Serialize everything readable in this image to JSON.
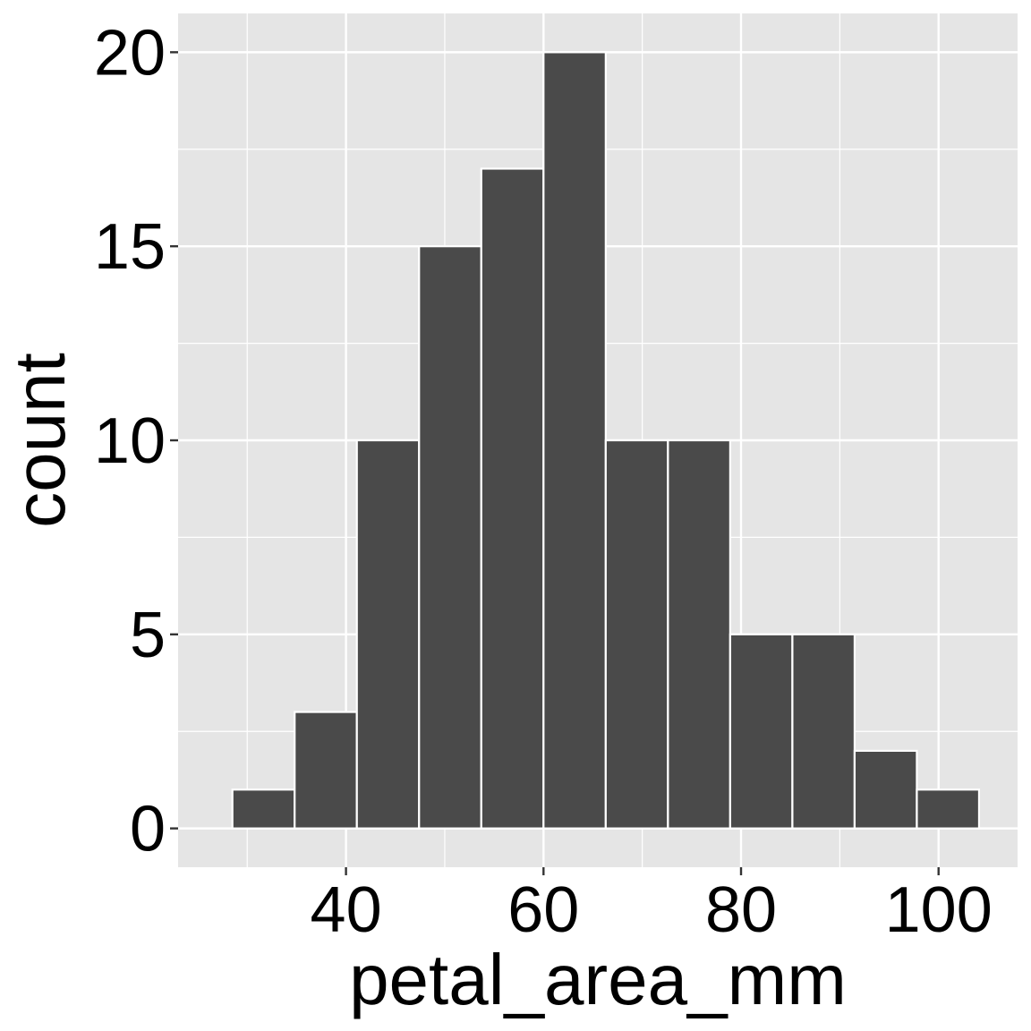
{
  "chart_data": {
    "type": "bar",
    "subtype": "histogram",
    "title": "",
    "xlabel": "petal_area_mm",
    "ylabel": "count",
    "bins": [
      {
        "start": 28.5,
        "end": 34.8,
        "count": 1
      },
      {
        "start": 34.8,
        "end": 41.1,
        "count": 3
      },
      {
        "start": 41.1,
        "end": 47.4,
        "count": 10
      },
      {
        "start": 47.4,
        "end": 53.7,
        "count": 15
      },
      {
        "start": 53.7,
        "end": 60.0,
        "count": 17
      },
      {
        "start": 60.0,
        "end": 66.3,
        "count": 20
      },
      {
        "start": 66.3,
        "end": 72.6,
        "count": 10
      },
      {
        "start": 72.6,
        "end": 78.9,
        "count": 10
      },
      {
        "start": 78.9,
        "end": 85.2,
        "count": 5
      },
      {
        "start": 85.2,
        "end": 91.5,
        "count": 5
      },
      {
        "start": 91.5,
        "end": 97.8,
        "count": 2
      },
      {
        "start": 97.8,
        "end": 104.1,
        "count": 1
      }
    ],
    "xlim": [
      23,
      108
    ],
    "ylim": [
      -1,
      21
    ],
    "xticks": [
      40,
      60,
      80,
      100
    ],
    "xtick_labels": [
      "40",
      "60",
      "80",
      "100"
    ],
    "yticks": [
      0,
      5,
      10,
      15,
      20
    ],
    "ytick_labels": [
      "0",
      "5",
      "10",
      "15",
      "20"
    ],
    "grid": true,
    "colors": {
      "panel_background": "#e5e5e5",
      "grid": "#ffffff",
      "bar_fill": "#4a4a4a",
      "bar_outline": "#ffffff"
    }
  }
}
